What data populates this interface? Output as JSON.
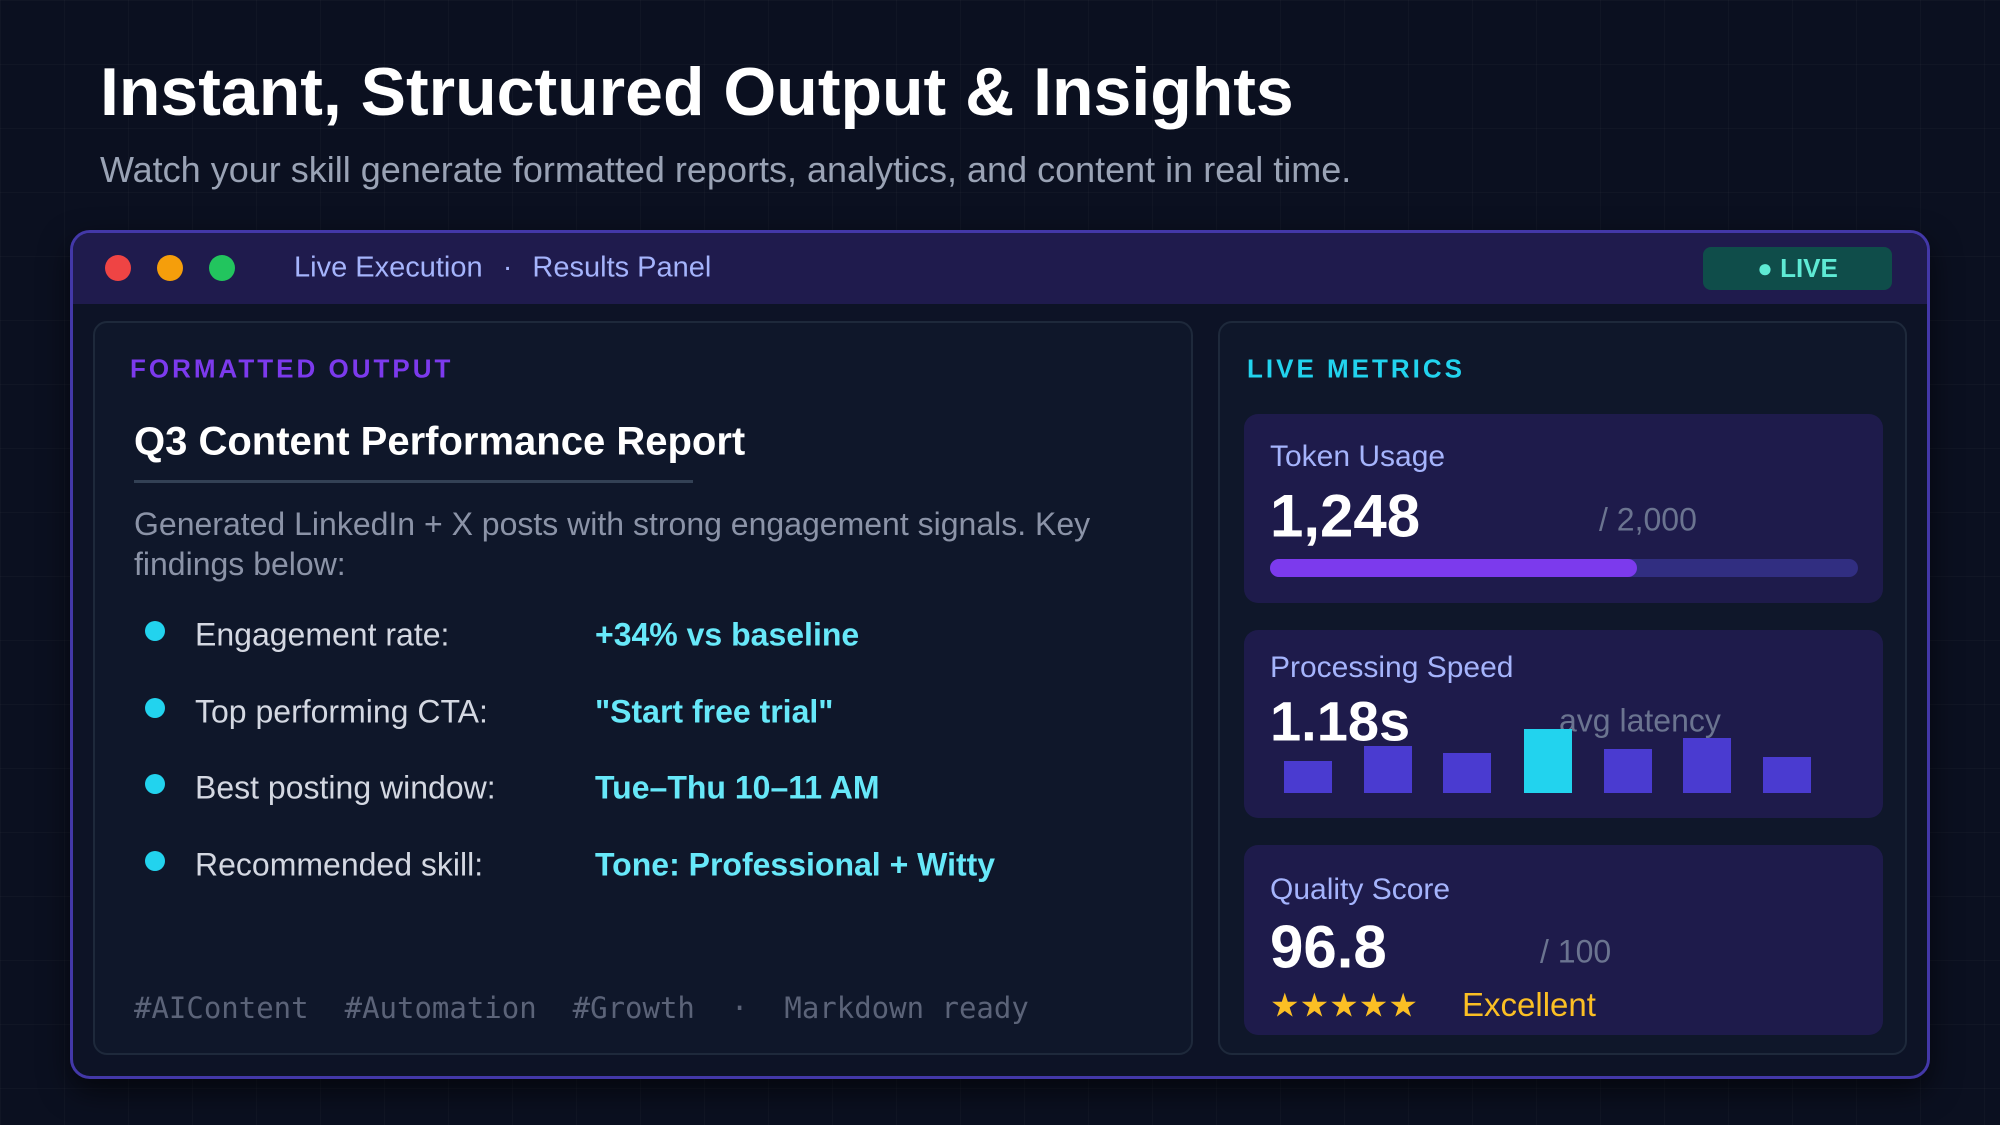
{
  "header": {
    "title": "Instant, Structured Output & Insights",
    "subtitle": "Watch your skill generate formatted reports, analytics, and content in real time."
  },
  "window": {
    "title": "Live Execution",
    "separator": "·",
    "subtitle": "Results Panel",
    "badge": "● LIVE"
  },
  "output": {
    "section_label": "FORMATTED OUTPUT",
    "report_title": "Q3 Content Performance Report",
    "summary": "Generated LinkedIn + X posts with strong engagement signals. Key findings below:",
    "findings": [
      {
        "label": "Engagement rate:",
        "value": "+34% vs baseline"
      },
      {
        "label": "Top performing CTA:",
        "value": "\"Start free trial\""
      },
      {
        "label": "Best posting window:",
        "value": "Tue–Thu 10–11 AM"
      },
      {
        "label": "Recommended skill:",
        "value": "Tone: Professional + Witty"
      }
    ],
    "tags": [
      "#AIContent",
      "#Automation",
      "#Growth"
    ],
    "tag_separator": "·",
    "footer_note": "Markdown ready"
  },
  "metrics": {
    "section_label": "LIVE METRICS",
    "token_usage": {
      "label": "Token Usage",
      "value": 1248,
      "value_label": "1,248",
      "max": 2000,
      "max_label": "/ 2,000"
    },
    "processing_speed": {
      "label": "Processing Speed",
      "value_label": "1.18s",
      "caption": "avg latency"
    },
    "quality_score": {
      "label": "Quality Score",
      "value_label": "96.8",
      "max_label": "/ 100",
      "stars": "★★★★★",
      "rating": "Excellent"
    }
  }
}
